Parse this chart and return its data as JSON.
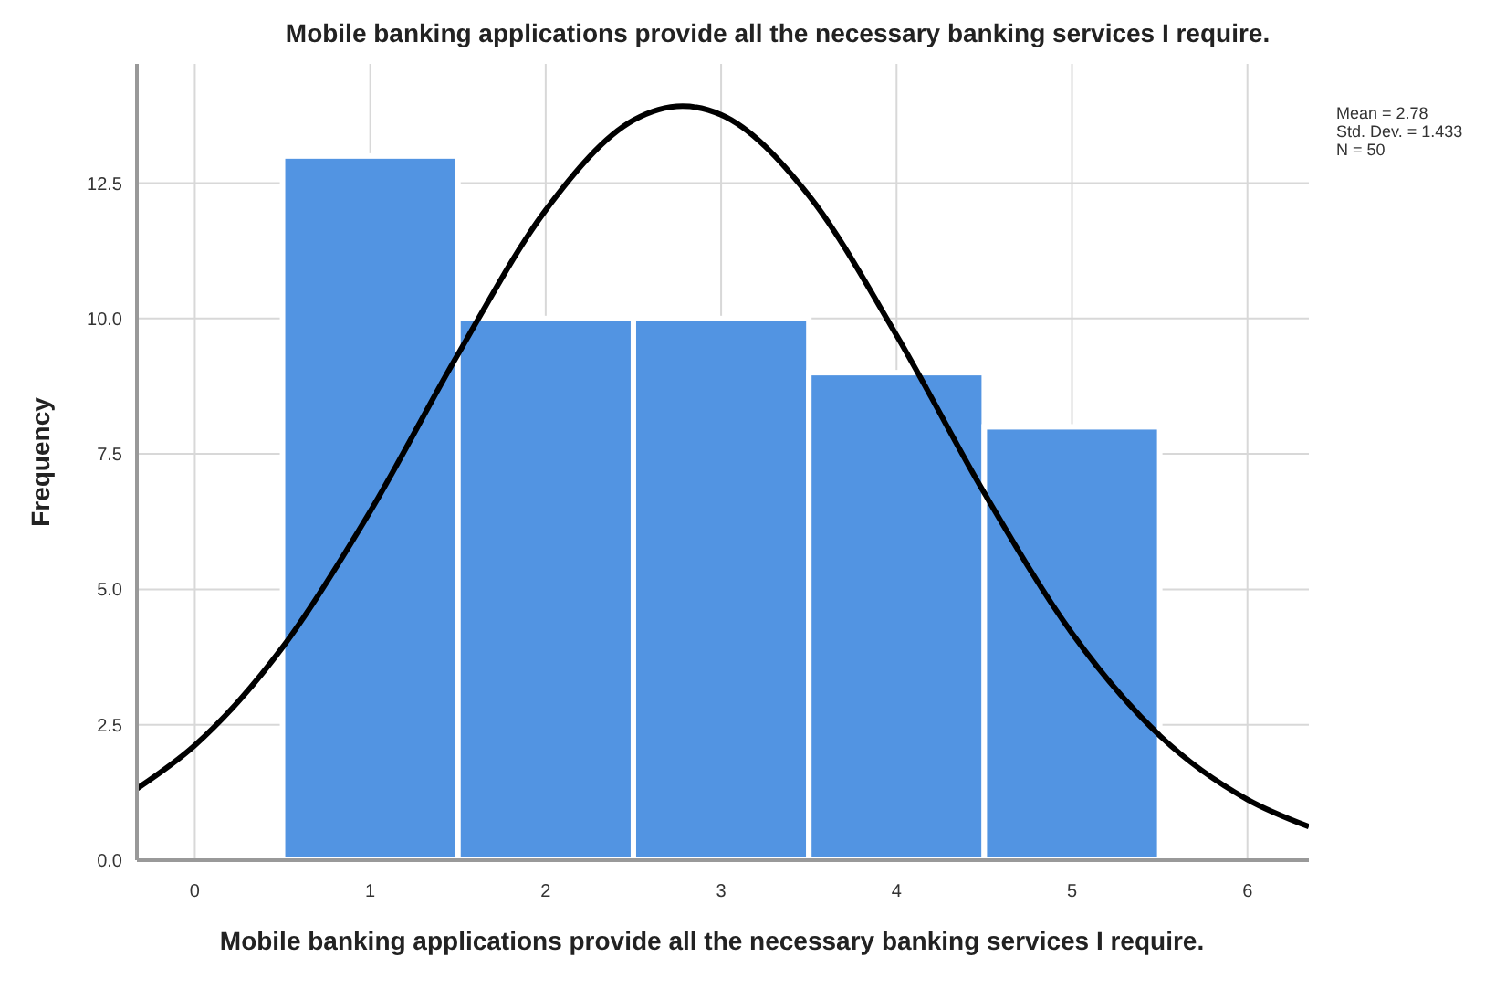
{
  "chart_data": {
    "type": "histogram",
    "title": "Mobile banking applications provide all the necessary banking services I require.",
    "xlabel": "Mobile banking applications provide all the necessary banking services I require.",
    "ylabel": "Frequency",
    "bins": [
      0.5,
      1.5,
      2.5,
      3.5,
      4.5,
      5.5
    ],
    "series": [
      {
        "color": "#5294e2",
        "values": [
          13,
          10,
          10,
          9,
          8
        ]
      },
      {
        "type": "line",
        "color": "#000000",
        "x": [
          -0.33,
          0,
          0.5,
          1,
          1.5,
          2,
          2.5,
          2.78,
          3,
          3.5,
          4,
          4.5,
          5,
          5.5,
          6,
          6.35
        ],
        "values": [
          1.32,
          2.12,
          3.93,
          6.44,
          9.34,
          12.0,
          13.66,
          13.92,
          13.76,
          12.27,
          9.69,
          6.78,
          4.19,
          2.3,
          1.12,
          0.62
        ]
      }
    ],
    "xlim": [
      -0.33,
      6.35
    ],
    "ylim": [
      0,
      14.7
    ],
    "xticks": [
      0,
      1,
      2,
      3,
      4,
      5,
      6
    ],
    "yticks": [
      {
        "value": 0,
        "label": "0.0"
      },
      {
        "value": 2.5,
        "label": "2.5"
      },
      {
        "value": 5,
        "label": "5.0"
      },
      {
        "value": 7.5,
        "label": "7.5"
      },
      {
        "value": 10,
        "label": "10.0"
      },
      {
        "value": 12.5,
        "label": "12.5"
      }
    ],
    "grid": true,
    "marker": "none",
    "line_style": "solid",
    "annotations": [
      "Mean = 2.78",
      "Std. Dev. = 1.433",
      "N = 50"
    ]
  }
}
